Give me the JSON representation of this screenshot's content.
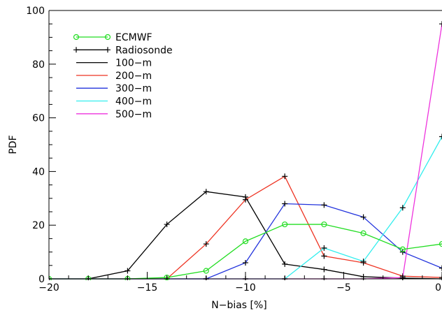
{
  "chart_data": {
    "type": "line",
    "xlabel": "N−bias [%]",
    "ylabel": "PDF",
    "xlim": [
      -20,
      0
    ],
    "ylim": [
      0,
      100
    ],
    "xticks": [
      -20,
      -15,
      -10,
      -5,
      0
    ],
    "xtick_labels": [
      "−20",
      "−15",
      "−10",
      "−5",
      "0"
    ],
    "yticks": [
      0,
      20,
      40,
      60,
      80,
      100
    ],
    "ytick_labels": [
      "0",
      "20",
      "40",
      "60",
      "80",
      "100"
    ],
    "grid": false,
    "legend_position": "top-left",
    "legend": [
      {
        "label": "ECMWF",
        "color": "#22dd22",
        "marker": "circle"
      },
      {
        "label": "Radiosonde",
        "color": "#000000",
        "marker": "plus"
      },
      {
        "label": "100−m",
        "color": "#000000",
        "marker": "none"
      },
      {
        "label": "200−m",
        "color": "#ee3322",
        "marker": "none"
      },
      {
        "label": "300−m",
        "color": "#2233dd",
        "marker": "none"
      },
      {
        "label": "400−m",
        "color": "#33eeee",
        "marker": "none"
      },
      {
        "label": "500−m",
        "color": "#ee33dd",
        "marker": "none"
      }
    ],
    "series": [
      {
        "name": "100−m",
        "color": "#000000",
        "marker": "plus",
        "x": [
          -20,
          -18,
          -16,
          -14,
          -12,
          -10,
          -8,
          -6,
          -4,
          -2,
          0
        ],
        "y": [
          0,
          0,
          3,
          20.3,
          32.5,
          30.5,
          5.5,
          3.5,
          0.8,
          0.3,
          0
        ]
      },
      {
        "name": "200−m",
        "color": "#ee3322",
        "marker": "plus",
        "x": [
          -20,
          -18,
          -16,
          -14,
          -12,
          -10,
          -8,
          -6,
          -4,
          -2,
          0
        ],
        "y": [
          0,
          0,
          0,
          0,
          13,
          29.5,
          38.2,
          8.5,
          6,
          1,
          0.5
        ]
      },
      {
        "name": "300−m",
        "color": "#2233dd",
        "marker": "plus",
        "x": [
          -20,
          -18,
          -16,
          -14,
          -12,
          -10,
          -8,
          -6,
          -4,
          -2,
          0
        ],
        "y": [
          0,
          0,
          0,
          0,
          0,
          6,
          28,
          27.5,
          23,
          10,
          4
        ]
      },
      {
        "name": "400−m",
        "color": "#33eeee",
        "marker": "plus",
        "x": [
          -20,
          -18,
          -16,
          -14,
          -12,
          -10,
          -8,
          -6,
          -4,
          -2,
          0
        ],
        "y": [
          0,
          0,
          0,
          0,
          0,
          0,
          0,
          11.5,
          6.5,
          26.5,
          53
        ]
      },
      {
        "name": "500−m",
        "color": "#ee33dd",
        "marker": "plus",
        "x": [
          -20,
          -18,
          -16,
          -14,
          -12,
          -10,
          -8,
          -6,
          -4,
          -2,
          0
        ],
        "y": [
          0,
          0,
          0,
          0,
          0,
          0,
          0,
          0,
          0,
          0.5,
          95
        ]
      },
      {
        "name": "ECMWF",
        "color": "#22dd22",
        "marker": "circle",
        "x": [
          -20,
          -18,
          -16,
          -14,
          -12,
          -10,
          -8,
          -6,
          -4,
          -2,
          0
        ],
        "y": [
          0,
          0,
          0,
          0.5,
          3,
          14,
          20.3,
          20.3,
          17,
          11,
          13
        ]
      }
    ]
  }
}
